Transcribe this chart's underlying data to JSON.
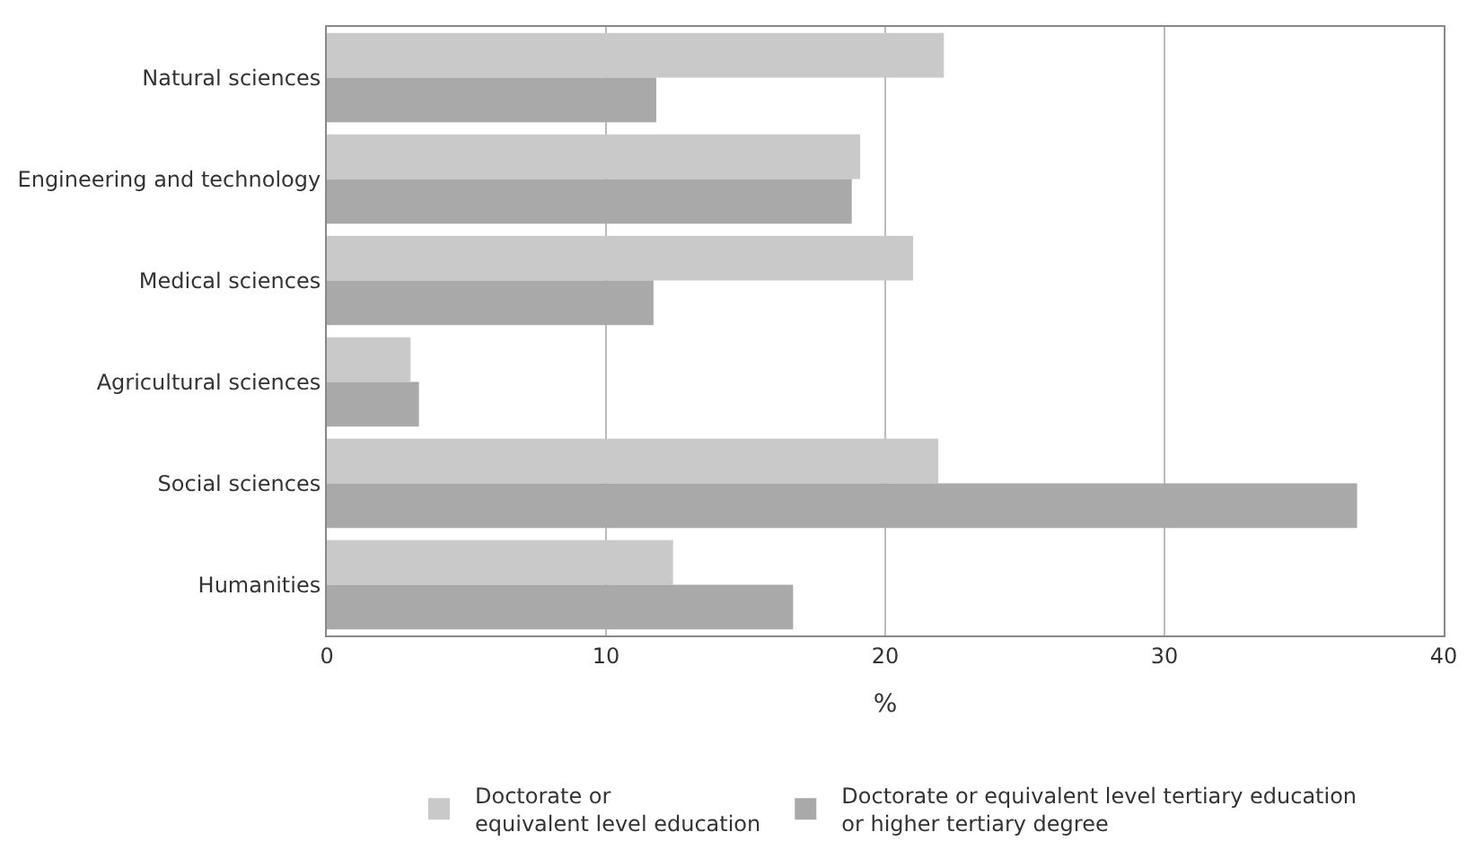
{
  "chart_data": {
    "type": "bar",
    "orientation": "horizontal",
    "xlabel": "%",
    "categories": [
      "Natural sciences",
      "Engineering and technology",
      "Medical sciences",
      "Agricultural sciences",
      "Social sciences",
      "Humanities"
    ],
    "series": [
      {
        "name": "Doctorate or\nequivalent level education",
        "color": "#c9c9c9",
        "values": [
          22.1,
          19.1,
          21.0,
          3.0,
          21.9,
          12.4
        ]
      },
      {
        "name": "Doctorate or equivalent level tertiary education\nor higher tertiary degree",
        "color": "#a9a9a9",
        "values": [
          11.8,
          18.8,
          11.7,
          3.3,
          36.9,
          16.7
        ]
      }
    ],
    "xlim": [
      0,
      40
    ],
    "xticks": [
      0,
      10,
      20,
      30,
      40
    ],
    "grid": "x",
    "legend": "bottom"
  }
}
